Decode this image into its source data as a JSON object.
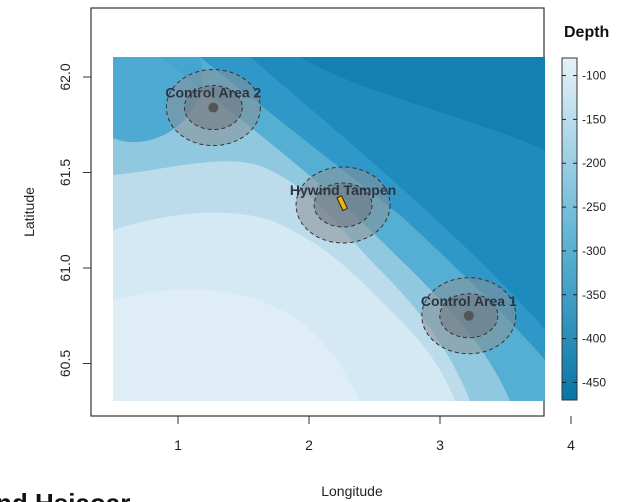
{
  "map": {
    "xlabel": "Longitude",
    "ylabel": "Latitude",
    "xticks": [
      {
        "value": 1,
        "label": "1"
      },
      {
        "value": 2,
        "label": "2"
      },
      {
        "value": 3,
        "label": "3"
      },
      {
        "value": 4,
        "label": "4"
      }
    ],
    "yticks": [
      {
        "value": 60.5,
        "label": "60.5"
      },
      {
        "value": 61.0,
        "label": "61.0"
      },
      {
        "value": 61.5,
        "label": "61.5"
      },
      {
        "value": 62.0,
        "label": "62.0"
      }
    ],
    "xlim": [
      0.4,
      4.2
    ],
    "ylim": [
      60.2,
      62.2
    ],
    "grid": false
  },
  "areas": [
    {
      "name": "Control Area 2",
      "lon": 1.27,
      "lat": 61.84
    },
    {
      "name": "Hywind Tampen",
      "lon": 2.26,
      "lat": 61.33
    },
    {
      "name": "Control Area 1",
      "lon": 3.22,
      "lat": 60.75
    }
  ],
  "legend": {
    "title": "Depth",
    "ticks": [
      "-100",
      "-150",
      "-200",
      "-250",
      "-300",
      "-350",
      "-400",
      "-450"
    ],
    "range": [
      -470,
      -80
    ]
  },
  "colors": {
    "shallow": "#d8ebf4",
    "deep": "#0a7cac",
    "buffer": "#8a8f96",
    "turbine": "#f5b400"
  },
  "footer_fragment": "nd Hsiaoar"
}
